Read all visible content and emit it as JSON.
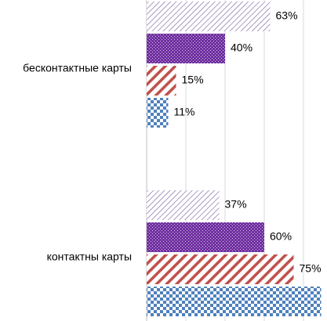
{
  "chart_data": {
    "type": "bar",
    "orientation": "horizontal",
    "categories": [
      "бесконтактные карты",
      "контактны карты"
    ],
    "series": [
      {
        "key": "s1",
        "values": [
          63,
          37
        ],
        "labels": [
          "63%",
          "37%"
        ],
        "color": "#8064a2",
        "pattern": "light-diagonal"
      },
      {
        "key": "s2",
        "values": [
          40,
          60
        ],
        "labels": [
          "40%",
          "60%"
        ],
        "color": "#7030a0",
        "pattern": "dense-dots"
      },
      {
        "key": "s3",
        "values": [
          15,
          75
        ],
        "labels": [
          "15%",
          "75%"
        ],
        "color": "#c0504d",
        "pattern": "wide-diagonal"
      },
      {
        "key": "s4",
        "values": [
          11,
          89
        ],
        "labels": [
          "11%",
          ""
        ],
        "color": "#4f81bd",
        "pattern": "checker"
      }
    ],
    "xlim": [
      0,
      100
    ],
    "x_ticks": [
      0,
      20,
      40,
      60,
      80
    ],
    "gridlines": true,
    "legend": "none"
  }
}
